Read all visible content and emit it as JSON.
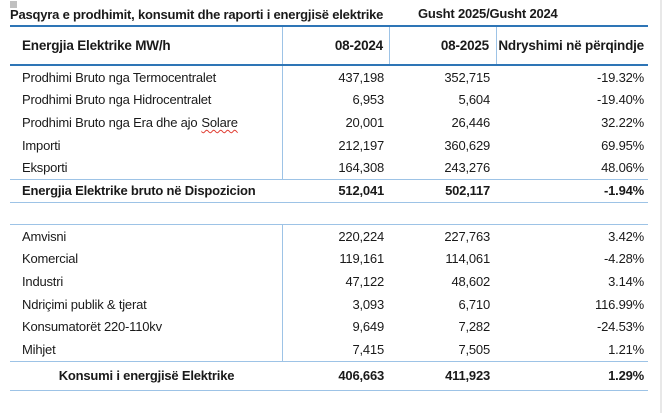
{
  "title": {
    "main": "Pasqyra e prodhimit, konsumit dhe raporti i energjisë elektrike",
    "period": "Gusht 2025/Gusht 2024"
  },
  "colors": {
    "accent_line": "#2E75B6",
    "grid_line": "#9DC3E6",
    "spellcheck_underline": "#E03C31"
  },
  "table": {
    "headers": {
      "col1": "Energjia Elektrike MW/h",
      "col2": "08-2024",
      "col3": "08-2025",
      "col4": "Ndryshimi në përqindje"
    },
    "production_rows": [
      {
        "label": "Prodhimi Bruto nga Termocentralet",
        "v2024": "437,198",
        "v2025": "352,715",
        "change": "-19.32%"
      },
      {
        "label": "Prodhimi Bruto nga Hidrocentralet",
        "v2024": "6,953",
        "v2025": "5,604",
        "change": "-19.40%"
      },
      {
        "label": "Prodhimi Bruto nga Era dhe ajo",
        "label_spellchecked": "Solare",
        "v2024": "20,001",
        "v2025": "26,446",
        "change": "32.22%"
      },
      {
        "label": "Importi",
        "v2024": "212,197",
        "v2025": "360,629",
        "change": "69.95%"
      },
      {
        "label": "Eksporti",
        "v2024": "164,308",
        "v2025": "243,276",
        "change": "48.06%"
      }
    ],
    "production_total": {
      "label": "Energjia Elektrike bruto në Dispozicion",
      "v2024": "512,041",
      "v2025": "502,117",
      "change": "-1.94%"
    },
    "consumption_rows": [
      {
        "label": "Amvisni",
        "v2024": "220,224",
        "v2025": "227,763",
        "change": "3.42%"
      },
      {
        "label": "Komercial",
        "v2024": "119,161",
        "v2025": "114,061",
        "change": "-4.28%"
      },
      {
        "label": "Industri",
        "v2024": "47,122",
        "v2025": "48,602",
        "change": "3.14%"
      },
      {
        "label": "Ndriçimi publik & tjerat",
        "v2024": "3,093",
        "v2025": "6,710",
        "change": "116.99%"
      },
      {
        "label": "Konsumatorët  220-110kv",
        "v2024": "9,649",
        "v2025": "7,282",
        "change": "-24.53%"
      },
      {
        "label": "Mihjet",
        "v2024": "7,415",
        "v2025": "7,505",
        "change": "1.21%"
      }
    ],
    "consumption_total": {
      "label": "Konsumi i energjisë Elektrike",
      "v2024": "406,663",
      "v2025": "411,923",
      "change": "1.29%"
    }
  }
}
